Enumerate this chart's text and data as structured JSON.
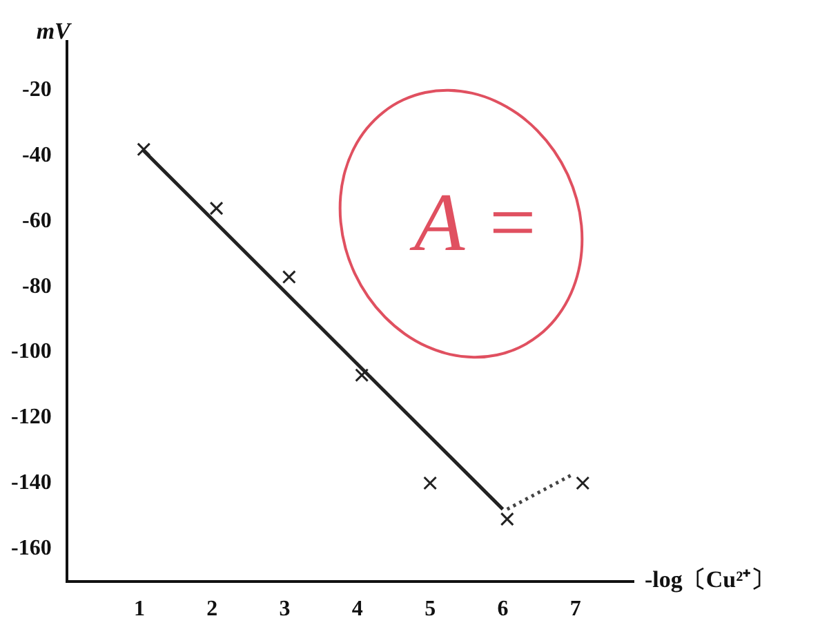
{
  "chart_data": {
    "type": "scatter",
    "xlabel": "-log〔Cu²⁺〕",
    "ylabel": "mV",
    "xlim": [
      0,
      7.8
    ],
    "ylim": [
      -170,
      -5
    ],
    "xticks": [
      1,
      2,
      3,
      4,
      5,
      6,
      7
    ],
    "yticks": [
      -20,
      -40,
      -60,
      -80,
      -100,
      -120,
      -140,
      -160
    ],
    "grid": false,
    "legend": false,
    "series": [
      {
        "marker": "cross",
        "color": "#222222",
        "x": [
          1.06,
          2.06,
          3.06,
          4.06,
          5,
          6.06,
          7.1
        ],
        "values": [
          -38,
          -56,
          -77,
          -107,
          -140,
          -151,
          -140
        ]
      },
      {
        "type": "line",
        "marker": "none",
        "line_style": "solid",
        "color": "#222222",
        "x": [
          1.04,
          6.0
        ],
        "values": [
          -38,
          -148
        ]
      },
      {
        "type": "line",
        "marker": "none",
        "line_style": "dotted",
        "color": "#444444",
        "x": [
          6.06,
          6.94
        ],
        "values": [
          -148,
          -137.6
        ]
      }
    ],
    "annotations": [
      "A ="
    ]
  }
}
